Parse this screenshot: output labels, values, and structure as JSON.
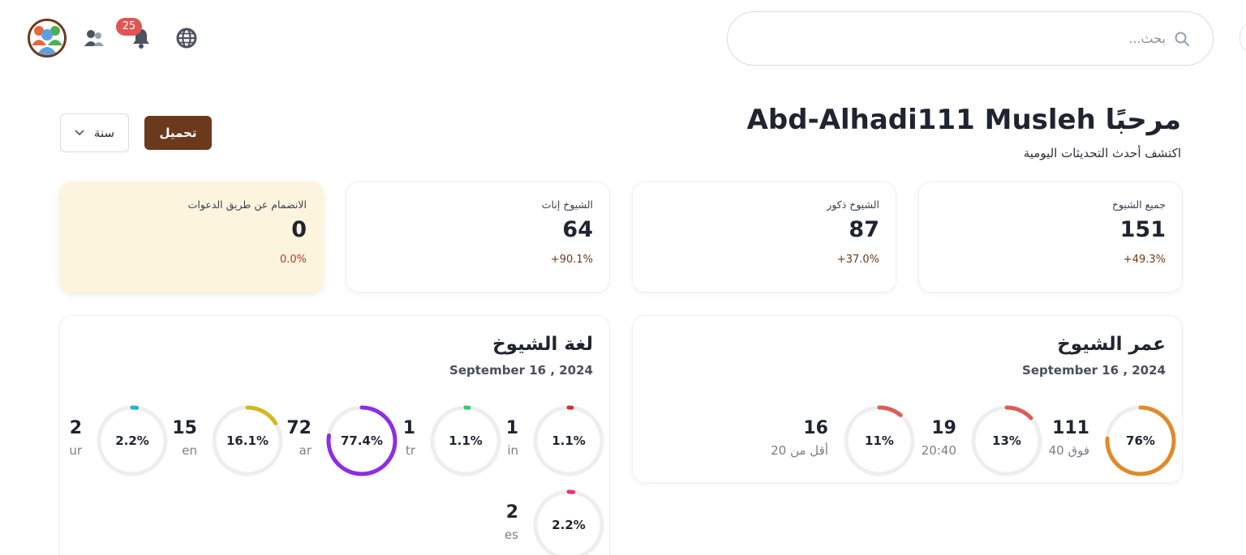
{
  "search": {
    "placeholder": "بحث..."
  },
  "notifications": {
    "count": "25"
  },
  "header": {
    "welcome": "مرحبًا Abd-Alhadi111 Musleh",
    "subtitle": "اكتشف أحدث التحديثات اليومية",
    "download_label": "تحميل",
    "period_value": "سنة"
  },
  "stats": [
    {
      "label": "جميع الشيوخ",
      "value": "151",
      "change": "49.3%+"
    },
    {
      "label": "الشيوخ ذكور",
      "value": "87",
      "change": "37.0%+"
    },
    {
      "label": "الشيوخ إناث",
      "value": "64",
      "change": "90.1%+"
    },
    {
      "label": "الانضمام عن طريق الدعوات",
      "value": "0",
      "change": "0.0%"
    }
  ],
  "age_panel": {
    "title": "عمر الشيوخ",
    "date": "September 16 , 2024",
    "items": [
      {
        "label": "فوق 40",
        "count": "111",
        "percent_label": "76%",
        "fraction": 0.76,
        "color": "#e08a2a"
      },
      {
        "label": "20:40",
        "count": "19",
        "percent_label": "13%",
        "fraction": 0.13,
        "color": "#e05a5a"
      },
      {
        "label": "أقل من 20",
        "count": "16",
        "percent_label": "11%",
        "fraction": 0.11,
        "color": "#e05a5a"
      }
    ]
  },
  "lang_panel": {
    "title": "لغة الشيوخ",
    "date": "September 16 , 2024",
    "items": [
      {
        "label": "in",
        "count": "1",
        "percent_label": "1.1%",
        "fraction": 0.011,
        "color": "#d32f2f"
      },
      {
        "label": "tr",
        "count": "1",
        "percent_label": "1.1%",
        "fraction": 0.011,
        "color": "#2ecc71"
      },
      {
        "label": "ar",
        "count": "72",
        "percent_label": "77.4%",
        "fraction": 0.774,
        "color": "#8e2de2"
      },
      {
        "label": "en",
        "count": "15",
        "percent_label": "16.1%",
        "fraction": 0.161,
        "color": "#d4b820"
      },
      {
        "label": "ur",
        "count": "2",
        "percent_label": "2.2%",
        "fraction": 0.022,
        "color": "#1fb5d8"
      },
      {
        "label": "es",
        "count": "2",
        "percent_label": "2.2%",
        "fraction": 0.022,
        "color": "#e0357a"
      }
    ]
  }
}
